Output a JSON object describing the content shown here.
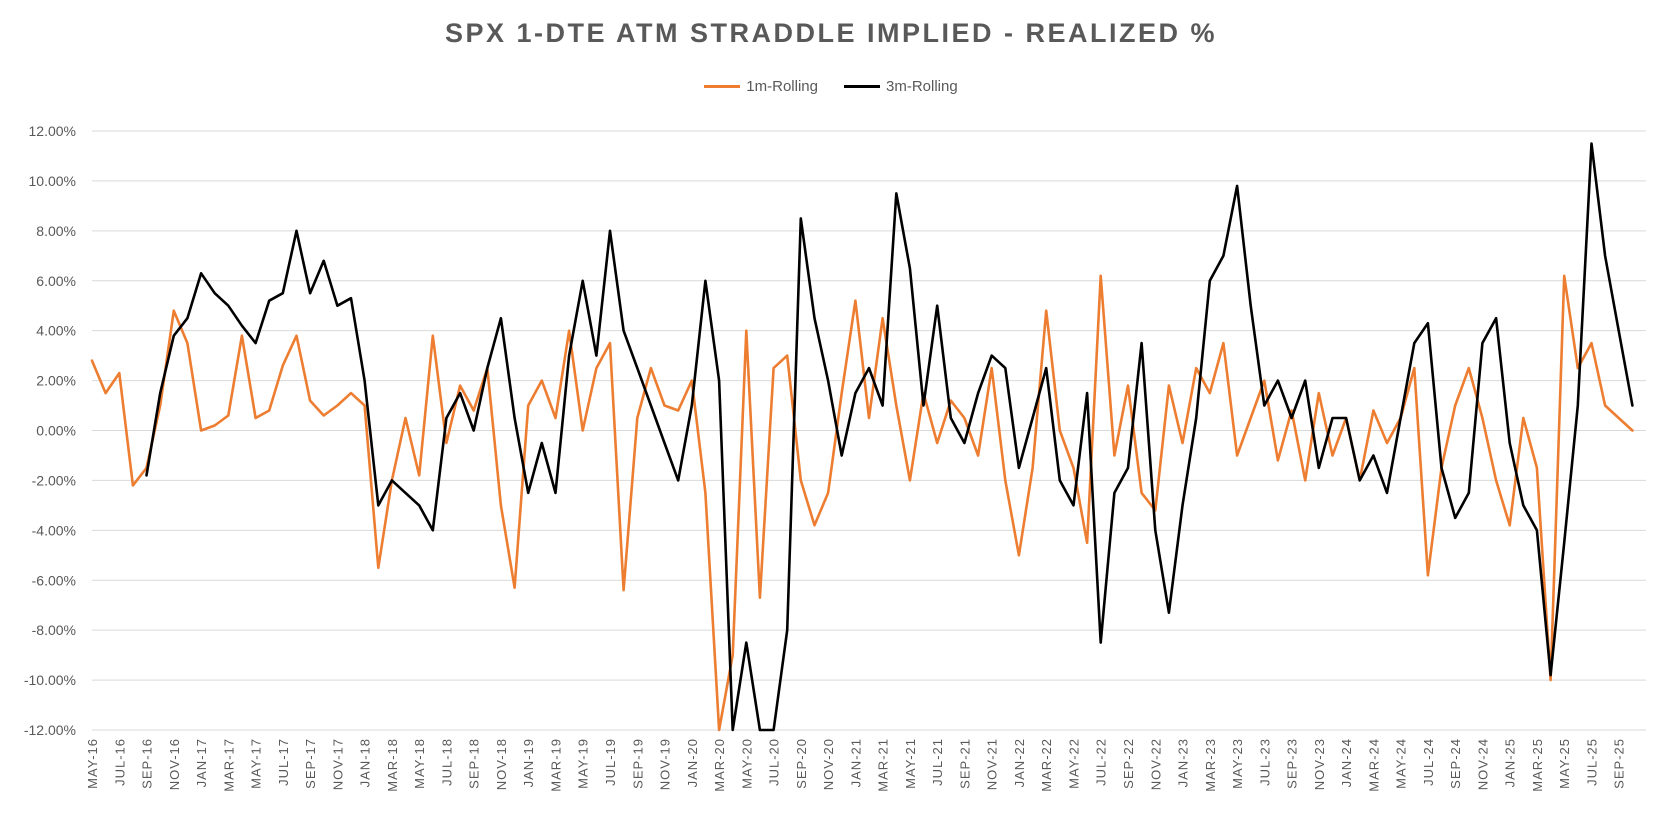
{
  "chart_data": {
    "type": "line",
    "title": "SPX 1-DTE ATM STRADDLE IMPLIED - REALIZED %",
    "legend_position": "top",
    "grid": "horizontal",
    "ylim": [
      -12,
      12
    ],
    "y_ticks": [
      "12.00%",
      "10.00%",
      "8.00%",
      "6.00%",
      "4.00%",
      "2.00%",
      "0.00%",
      "-2.00%",
      "-4.00%",
      "-6.00%",
      "-8.00%",
      "-10.00%",
      "-12.00%"
    ],
    "x_ticks": [
      "MAY-16",
      "JUL-16",
      "SEP-16",
      "NOV-16",
      "JAN-17",
      "MAR-17",
      "MAY-17",
      "JUL-17",
      "SEP-17",
      "NOV-17",
      "JAN-18",
      "MAR-18",
      "MAY-18",
      "JUL-18",
      "SEP-18",
      "NOV-18",
      "JAN-19",
      "MAR-19",
      "MAY-19",
      "JUL-19",
      "SEP-19",
      "NOV-19",
      "JAN-20",
      "MAR-20",
      "MAY-20",
      "JUL-20",
      "SEP-20",
      "NOV-20",
      "JAN-21",
      "MAR-21",
      "MAY-21",
      "JUL-21",
      "SEP-21",
      "NOV-21",
      "JAN-22",
      "MAR-22",
      "MAY-22",
      "JUL-22",
      "SEP-22",
      "NOV-22",
      "JAN-23",
      "MAR-23",
      "MAY-23",
      "JUL-23",
      "SEP-23",
      "NOV-23",
      "JAN-24",
      "MAR-24",
      "MAY-24",
      "JUL-24",
      "SEP-24",
      "NOV-24",
      "JAN-25",
      "MAR-25",
      "MAY-25",
      "JUL-25",
      "SEP-25"
    ],
    "series": [
      {
        "name": "1m-Rolling",
        "color": "#ED7D31",
        "points": [
          [
            "MAY-16",
            2.8
          ],
          [
            "JUN-16",
            1.5
          ],
          [
            "JUL-16",
            2.3
          ],
          [
            "AUG-16",
            -2.2
          ],
          [
            "SEP-16",
            -1.5
          ],
          [
            "OCT-16",
            1.0
          ],
          [
            "NOV-16",
            4.8
          ],
          [
            "DEC-16",
            3.5
          ],
          [
            "JAN-17",
            0.0
          ],
          [
            "FEB-17",
            0.2
          ],
          [
            "MAR-17",
            0.6
          ],
          [
            "APR-17",
            3.8
          ],
          [
            "MAY-17",
            0.5
          ],
          [
            "JUN-17",
            0.8
          ],
          [
            "JUL-17",
            2.6
          ],
          [
            "AUG-17",
            3.8
          ],
          [
            "SEP-17",
            1.2
          ],
          [
            "OCT-17",
            0.6
          ],
          [
            "NOV-17",
            1.0
          ],
          [
            "DEC-17",
            1.5
          ],
          [
            "JAN-18",
            1.0
          ],
          [
            "FEB-18",
            -5.5
          ],
          [
            "MAR-18",
            -2.0
          ],
          [
            "APR-18",
            0.5
          ],
          [
            "MAY-18",
            -1.8
          ],
          [
            "JUN-18",
            3.8
          ],
          [
            "JUL-18",
            -0.5
          ],
          [
            "AUG-18",
            1.8
          ],
          [
            "SEP-18",
            0.8
          ],
          [
            "OCT-18",
            2.5
          ],
          [
            "NOV-18",
            -3.0
          ],
          [
            "DEC-18",
            -6.3
          ],
          [
            "JAN-19",
            1.0
          ],
          [
            "FEB-19",
            2.0
          ],
          [
            "MAR-19",
            0.5
          ],
          [
            "APR-19",
            4.0
          ],
          [
            "MAY-19",
            0.0
          ],
          [
            "JUN-19",
            2.5
          ],
          [
            "JUL-19",
            3.5
          ],
          [
            "AUG-19",
            -6.4
          ],
          [
            "SEP-19",
            0.5
          ],
          [
            "OCT-19",
            2.5
          ],
          [
            "NOV-19",
            1.0
          ],
          [
            "DEC-19",
            0.8
          ],
          [
            "JAN-20",
            2.0
          ],
          [
            "FEB-20",
            -2.5
          ],
          [
            "MAR-20",
            -12.0
          ],
          [
            "APR-20",
            -9.0
          ],
          [
            "MAY-20",
            4.0
          ],
          [
            "JUN-20",
            -6.7
          ],
          [
            "JUL-20",
            2.5
          ],
          [
            "AUG-20",
            3.0
          ],
          [
            "SEP-20",
            -2.0
          ],
          [
            "OCT-20",
            -3.8
          ],
          [
            "NOV-20",
            -2.5
          ],
          [
            "DEC-20",
            1.5
          ],
          [
            "JAN-21",
            5.2
          ],
          [
            "FEB-21",
            0.5
          ],
          [
            "MAR-21",
            4.5
          ],
          [
            "APR-21",
            1.0
          ],
          [
            "MAY-21",
            -2.0
          ],
          [
            "JUN-21",
            1.5
          ],
          [
            "JUL-21",
            -0.5
          ],
          [
            "AUG-21",
            1.2
          ],
          [
            "SEP-21",
            0.5
          ],
          [
            "OCT-21",
            -1.0
          ],
          [
            "NOV-21",
            2.5
          ],
          [
            "DEC-21",
            -2.0
          ],
          [
            "JAN-22",
            -5.0
          ],
          [
            "FEB-22",
            -1.5
          ],
          [
            "MAR-22",
            4.8
          ],
          [
            "APR-22",
            0.0
          ],
          [
            "MAY-22",
            -1.5
          ],
          [
            "JUN-22",
            -4.5
          ],
          [
            "JUL-22",
            6.2
          ],
          [
            "AUG-22",
            -1.0
          ],
          [
            "SEP-22",
            1.8
          ],
          [
            "OCT-22",
            -2.5
          ],
          [
            "NOV-22",
            -3.2
          ],
          [
            "DEC-22",
            1.8
          ],
          [
            "JAN-23",
            -0.5
          ],
          [
            "FEB-23",
            2.5
          ],
          [
            "MAR-23",
            1.5
          ],
          [
            "APR-23",
            3.5
          ],
          [
            "MAY-23",
            -1.0
          ],
          [
            "JUN-23",
            0.5
          ],
          [
            "JUL-23",
            2.0
          ],
          [
            "AUG-23",
            -1.2
          ],
          [
            "SEP-23",
            0.8
          ],
          [
            "OCT-23",
            -2.0
          ],
          [
            "NOV-23",
            1.5
          ],
          [
            "DEC-23",
            -1.0
          ],
          [
            "JAN-24",
            0.5
          ],
          [
            "FEB-24",
            -2.0
          ],
          [
            "MAR-24",
            0.8
          ],
          [
            "APR-24",
            -0.5
          ],
          [
            "MAY-24",
            0.5
          ],
          [
            "JUN-24",
            2.5
          ],
          [
            "JUL-24",
            -5.8
          ],
          [
            "AUG-24",
            -1.5
          ],
          [
            "SEP-24",
            1.0
          ],
          [
            "OCT-24",
            2.5
          ],
          [
            "NOV-24",
            0.5
          ],
          [
            "DEC-24",
            -2.0
          ],
          [
            "JAN-25",
            -3.8
          ],
          [
            "FEB-25",
            0.5
          ],
          [
            "MAR-25",
            -1.5
          ],
          [
            "APR-25",
            -10.0
          ],
          [
            "MAY-25",
            6.2
          ],
          [
            "JUN-25",
            2.5
          ],
          [
            "JUL-25",
            3.5
          ],
          [
            "AUG-25",
            1.0
          ],
          [
            "SEP-25",
            0.5
          ],
          [
            "OCT-25",
            0.0
          ]
        ]
      },
      {
        "name": "3m-Rolling",
        "color": "#000000",
        "points": [
          [
            "SEP-16",
            -1.8
          ],
          [
            "OCT-16",
            1.5
          ],
          [
            "NOV-16",
            3.8
          ],
          [
            "DEC-16",
            4.5
          ],
          [
            "JAN-17",
            6.3
          ],
          [
            "FEB-17",
            5.5
          ],
          [
            "MAR-17",
            5.0
          ],
          [
            "APR-17",
            4.2
          ],
          [
            "MAY-17",
            3.5
          ],
          [
            "JUN-17",
            5.2
          ],
          [
            "JUL-17",
            5.5
          ],
          [
            "AUG-17",
            8.0
          ],
          [
            "SEP-17",
            5.5
          ],
          [
            "OCT-17",
            6.8
          ],
          [
            "NOV-17",
            5.0
          ],
          [
            "DEC-17",
            5.3
          ],
          [
            "JAN-18",
            2.0
          ],
          [
            "FEB-18",
            -3.0
          ],
          [
            "MAR-18",
            -2.0
          ],
          [
            "APR-18",
            -2.5
          ],
          [
            "MAY-18",
            -3.0
          ],
          [
            "JUN-18",
            -4.0
          ],
          [
            "JUL-18",
            0.5
          ],
          [
            "AUG-18",
            1.5
          ],
          [
            "SEP-18",
            0.0
          ],
          [
            "OCT-18",
            2.5
          ],
          [
            "NOV-18",
            4.5
          ],
          [
            "DEC-18",
            0.5
          ],
          [
            "JAN-19",
            -2.5
          ],
          [
            "FEB-19",
            -0.5
          ],
          [
            "MAR-19",
            -2.5
          ],
          [
            "APR-19",
            3.0
          ],
          [
            "MAY-19",
            6.0
          ],
          [
            "JUN-19",
            3.0
          ],
          [
            "JUL-19",
            8.0
          ],
          [
            "AUG-19",
            4.0
          ],
          [
            "SEP-19",
            2.5
          ],
          [
            "OCT-19",
            1.0
          ],
          [
            "NOV-19",
            -0.5
          ],
          [
            "DEC-19",
            -2.0
          ],
          [
            "JAN-20",
            1.0
          ],
          [
            "FEB-20",
            6.0
          ],
          [
            "MAR-20",
            2.0
          ],
          [
            "APR-20",
            -12.0
          ],
          [
            "MAY-20",
            -8.5
          ],
          [
            "JUN-20",
            -12.0
          ],
          [
            "JUL-20",
            -12.0
          ],
          [
            "AUG-20",
            -8.0
          ],
          [
            "SEP-20",
            8.5
          ],
          [
            "OCT-20",
            4.5
          ],
          [
            "NOV-20",
            2.0
          ],
          [
            "DEC-20",
            -1.0
          ],
          [
            "JAN-21",
            1.5
          ],
          [
            "FEB-21",
            2.5
          ],
          [
            "MAR-21",
            1.0
          ],
          [
            "APR-21",
            9.5
          ],
          [
            "MAY-21",
            6.5
          ],
          [
            "JUN-21",
            1.0
          ],
          [
            "JUL-21",
            5.0
          ],
          [
            "AUG-21",
            0.5
          ],
          [
            "SEP-21",
            -0.5
          ],
          [
            "OCT-21",
            1.5
          ],
          [
            "NOV-21",
            3.0
          ],
          [
            "DEC-21",
            2.5
          ],
          [
            "JAN-22",
            -1.5
          ],
          [
            "FEB-22",
            0.5
          ],
          [
            "MAR-22",
            2.5
          ],
          [
            "APR-22",
            -2.0
          ],
          [
            "MAY-22",
            -3.0
          ],
          [
            "JUN-22",
            1.5
          ],
          [
            "JUL-22",
            -8.5
          ],
          [
            "AUG-22",
            -2.5
          ],
          [
            "SEP-22",
            -1.5
          ],
          [
            "OCT-22",
            3.5
          ],
          [
            "NOV-22",
            -4.0
          ],
          [
            "DEC-22",
            -7.3
          ],
          [
            "JAN-23",
            -3.0
          ],
          [
            "FEB-23",
            0.5
          ],
          [
            "MAR-23",
            6.0
          ],
          [
            "APR-23",
            7.0
          ],
          [
            "MAY-23",
            9.8
          ],
          [
            "JUN-23",
            5.0
          ],
          [
            "JUL-23",
            1.0
          ],
          [
            "AUG-23",
            2.0
          ],
          [
            "SEP-23",
            0.5
          ],
          [
            "OCT-23",
            2.0
          ],
          [
            "NOV-23",
            -1.5
          ],
          [
            "DEC-23",
            0.5
          ],
          [
            "JAN-24",
            0.5
          ],
          [
            "FEB-24",
            -2.0
          ],
          [
            "MAR-24",
            -1.0
          ],
          [
            "APR-24",
            -2.5
          ],
          [
            "MAY-24",
            0.5
          ],
          [
            "JUN-24",
            3.5
          ],
          [
            "JUL-24",
            4.3
          ],
          [
            "AUG-24",
            -1.5
          ],
          [
            "SEP-24",
            -3.5
          ],
          [
            "OCT-24",
            -2.5
          ],
          [
            "NOV-24",
            3.5
          ],
          [
            "DEC-24",
            4.5
          ],
          [
            "JAN-25",
            -0.5
          ],
          [
            "FEB-25",
            -3.0
          ],
          [
            "MAR-25",
            -4.0
          ],
          [
            "APR-25",
            -9.8
          ],
          [
            "MAY-25",
            -4.5
          ],
          [
            "JUN-25",
            1.0
          ],
          [
            "JUL-25",
            11.5
          ],
          [
            "AUG-25",
            7.0
          ],
          [
            "SEP-25",
            4.0
          ],
          [
            "OCT-25",
            1.0
          ]
        ]
      }
    ]
  }
}
